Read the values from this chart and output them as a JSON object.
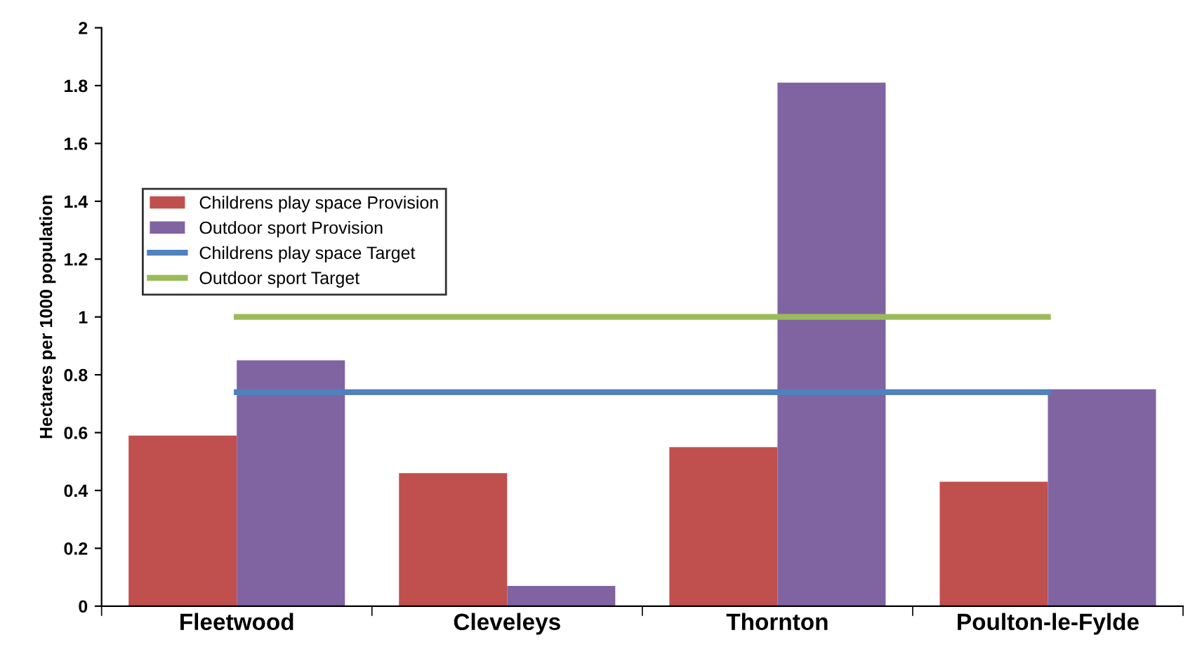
{
  "chart_data": {
    "type": "bar",
    "ylabel": "Hectares per 1000 population",
    "categories": [
      "Fleetwood",
      "Cleveleys",
      "Thornton",
      "Poulton-le-Fylde"
    ],
    "series": [
      {
        "name": "Childrens play space Provision",
        "color": "#c0504d",
        "values": [
          0.59,
          0.46,
          0.55,
          0.43
        ]
      },
      {
        "name": "Outdoor sport Provision",
        "color": "#8064a2",
        "values": [
          0.85,
          0.07,
          1.81,
          0.75
        ]
      },
      {
        "name": "Childrens play space Target",
        "color": "#4f81bd",
        "type": "line",
        "values": [
          0.74,
          0.74,
          0.74,
          0.74
        ]
      },
      {
        "name": "Outdoor sport Target",
        "color": "#9bbb59",
        "type": "line",
        "values": [
          1,
          1,
          1,
          1
        ]
      }
    ],
    "ylim": [
      0,
      2
    ],
    "yticks": [
      0,
      0.2,
      0.4,
      0.6,
      0.8,
      1,
      1.2,
      1.4,
      1.6,
      1.8,
      2
    ],
    "grid": false,
    "legend": "left"
  }
}
